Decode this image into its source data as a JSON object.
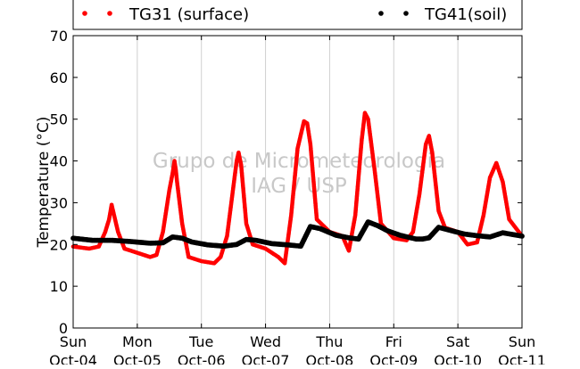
{
  "chart_data": {
    "type": "scatter",
    "xlabel": "",
    "ylabel": "Temperature (°C)",
    "ylim": [
      0,
      70
    ],
    "yticks": [
      0,
      10,
      20,
      30,
      40,
      50,
      60,
      70
    ],
    "xlim": [
      0,
      7
    ],
    "xticks": [
      {
        "value": 0,
        "line1": "Sun",
        "line2": "Oct-04"
      },
      {
        "value": 1,
        "line1": "Mon",
        "line2": "Oct-05"
      },
      {
        "value": 2,
        "line1": "Tue",
        "line2": "Oct-06"
      },
      {
        "value": 3,
        "line1": "Wed",
        "line2": "Oct-07"
      },
      {
        "value": 4,
        "line1": "Thu",
        "line2": "Oct-08"
      },
      {
        "value": 5,
        "line1": "Fri",
        "line2": "Oct-09"
      },
      {
        "value": 6,
        "line1": "Sat",
        "line2": "Oct-10"
      },
      {
        "value": 7,
        "line1": "Sun",
        "line2": "Oct-11"
      }
    ],
    "grid": "vertical-only",
    "legend_position": "top",
    "watermark": [
      "Grupo de Micrometeorologia",
      "IAG / USP"
    ],
    "series": [
      {
        "name": "TG31 (surface)",
        "color": "#ff0000",
        "x": [
          0.0,
          0.25,
          0.4,
          0.5,
          0.56,
          0.6,
          0.7,
          0.8,
          1.0,
          1.2,
          1.3,
          1.4,
          1.5,
          1.55,
          1.58,
          1.6,
          1.62,
          1.7,
          1.8,
          2.0,
          2.2,
          2.3,
          2.4,
          2.5,
          2.55,
          2.58,
          2.62,
          2.7,
          2.8,
          3.0,
          3.2,
          3.3,
          3.4,
          3.5,
          3.6,
          3.65,
          3.7,
          3.8,
          4.0,
          4.2,
          4.3,
          4.4,
          4.5,
          4.55,
          4.6,
          4.7,
          4.8,
          5.0,
          5.2,
          5.3,
          5.4,
          5.5,
          5.55,
          5.6,
          5.7,
          5.8,
          6.0,
          6.15,
          6.3,
          6.4,
          6.5,
          6.6,
          6.7,
          6.8,
          7.0
        ],
        "y": [
          19.5,
          19.0,
          19.5,
          23,
          26,
          29.5,
          23,
          19,
          18,
          17,
          17.5,
          23,
          33,
          37,
          40,
          38,
          35,
          25,
          17,
          16,
          15.5,
          17,
          22,
          34,
          40,
          42,
          39,
          25,
          20,
          19,
          17,
          15.5,
          27,
          43,
          49.5,
          49,
          44,
          26,
          23,
          22,
          18.5,
          27,
          45,
          51.5,
          50,
          38,
          25,
          21.5,
          21,
          23,
          32,
          44,
          46,
          42,
          28,
          24,
          23,
          20,
          20.5,
          27,
          36,
          39.5,
          35,
          26,
          22
        ]
      },
      {
        "name": "TG41(soil)",
        "color": "#000000",
        "x": [
          0.0,
          0.3,
          0.6,
          0.9,
          1.2,
          1.4,
          1.55,
          1.7,
          1.85,
          2.1,
          2.35,
          2.55,
          2.7,
          2.85,
          3.1,
          3.35,
          3.55,
          3.7,
          3.85,
          4.1,
          4.3,
          4.45,
          4.6,
          4.75,
          4.9,
          5.1,
          5.35,
          5.45,
          5.55,
          5.7,
          5.85,
          6.1,
          6.3,
          6.5,
          6.7,
          7.0
        ],
        "y": [
          21.5,
          21.0,
          21.0,
          20.7,
          20.3,
          20.4,
          21.8,
          21.5,
          20.6,
          19.9,
          19.6,
          20.0,
          21.2,
          21.0,
          20.2,
          19.9,
          19.6,
          24.3,
          23.8,
          22.2,
          21.6,
          21.3,
          25.4,
          24.5,
          23.3,
          22.2,
          21.3,
          21.3,
          21.6,
          24.1,
          23.5,
          22.5,
          22.1,
          21.8,
          22.8,
          22.0
        ]
      }
    ]
  }
}
